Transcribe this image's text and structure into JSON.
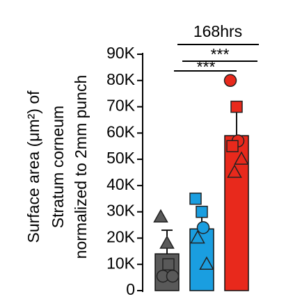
{
  "chart_data": {
    "type": "bar",
    "ylabel": [
      "Surface area (μm²) of",
      "Stratum corneum",
      "normalized to 2mm punch"
    ],
    "annotations": [
      {
        "text": "168hrs"
      },
      {
        "text": "***"
      },
      {
        "text": "***"
      }
    ],
    "ylim": [
      0,
      90000
    ],
    "yticks": [
      0,
      {
        "value": 10000,
        "label": "10K"
      },
      {
        "value": 20000,
        "label": "20K"
      },
      {
        "value": 30000,
        "label": "30K"
      },
      {
        "value": 40000,
        "label": "40K"
      },
      {
        "value": 50000,
        "label": "50K"
      },
      {
        "value": 60000,
        "label": "60K"
      },
      {
        "value": 70000,
        "label": "70K"
      },
      {
        "value": 80000,
        "label": "80K"
      },
      {
        "value": 90000,
        "label": "90K"
      }
    ],
    "bars": [
      {
        "color": "#595959",
        "value": 14000,
        "error": 9000,
        "points": [
          {
            "shape": "triangle",
            "value": 28000
          },
          {
            "shape": "triangle",
            "value": 18000
          },
          {
            "shape": "square",
            "value": 10000
          },
          {
            "shape": "circle",
            "value": 5500
          },
          {
            "shape": "circle",
            "value": 5500
          }
        ]
      },
      {
        "color": "#1a9ee0",
        "value": 23500,
        "error": 6000,
        "points": [
          {
            "shape": "square",
            "value": 35000
          },
          {
            "shape": "square",
            "value": 30000
          },
          {
            "shape": "circle",
            "value": 24000
          },
          {
            "shape": "triangle",
            "value": 20000
          },
          {
            "shape": "triangle",
            "value": 10000
          }
        ]
      },
      {
        "color": "#e8291c",
        "value": 59000,
        "error": 13000,
        "points": [
          {
            "shape": "circle",
            "value": 80000
          },
          {
            "shape": "square",
            "value": 70000
          },
          {
            "shape": "circle",
            "value": 57000
          },
          {
            "shape": "square",
            "value": 55000
          },
          {
            "shape": "triangle",
            "value": 50000
          },
          {
            "shape": "triangle",
            "value": 45000
          }
        ]
      }
    ]
  }
}
